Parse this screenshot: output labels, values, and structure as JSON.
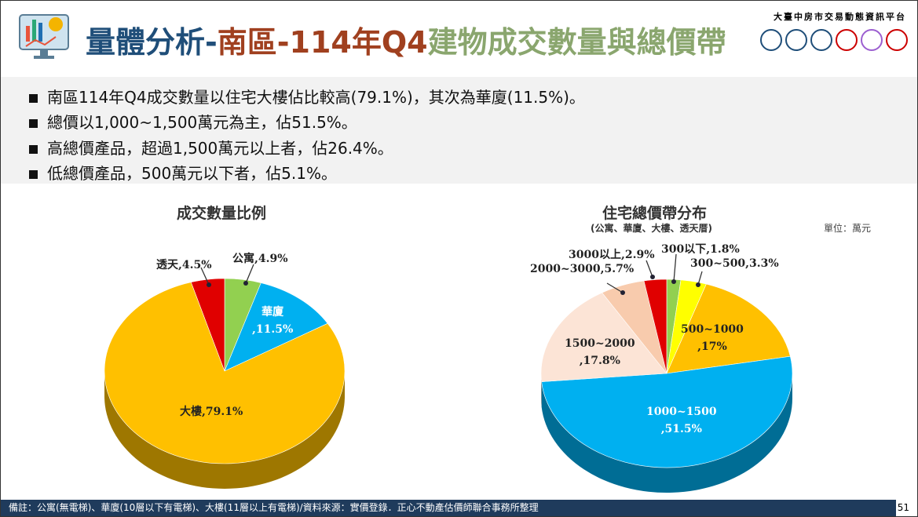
{
  "header": {
    "title_part1": "量體分析-",
    "title_part2": "南區-114年Q4",
    "title_part3": "建物成交數量與總價帶",
    "platform": "大臺中房市交易動態資訊平台",
    "logos": [
      "TRDA",
      "DIC",
      "GOV",
      "中",
      "◇",
      "CTREAA"
    ]
  },
  "bullets": [
    "南區114年Q4成交數量以住宅大樓佔比較高(79.1%)，其次為華廈(11.5%)。",
    "總價以1,000~1,500萬元為主，佔51.5%。",
    "高總價產品，超過1,500萬元以上者，佔26.4%。",
    "低總價產品，500萬元以下者，佔5.1%。"
  ],
  "chart_data": [
    {
      "type": "pie",
      "title": "成交數量比例",
      "slices": [
        {
          "label": "公寓,4.9%",
          "name": "公寓",
          "value": 4.9,
          "color": "#92d050"
        },
        {
          "label": "華廈\n,11.5%",
          "name": "華廈",
          "value": 11.5,
          "color": "#00b0f0"
        },
        {
          "label": "大樓,79.1%",
          "name": "大樓",
          "value": 79.1,
          "color": "#ffc000"
        },
        {
          "label": "透天,4.5%",
          "name": "透天",
          "value": 4.5,
          "color": "#e00000"
        }
      ]
    },
    {
      "type": "pie",
      "title": "住宅總價帶分布",
      "subtitle": "(公寓、華廈、大樓、透天厝)",
      "unit": "單位：萬元",
      "slices": [
        {
          "label": "300以下,1.8%",
          "name": "300以下",
          "value": 1.8,
          "color": "#92d050"
        },
        {
          "label": "300~500,3.3%",
          "name": "300~500",
          "value": 3.3,
          "color": "#ffff00"
        },
        {
          "label": "500~1000\n,17%",
          "name": "500~1000",
          "value": 17,
          "color": "#ffc000"
        },
        {
          "label": "1000~1500\n,51.5%",
          "name": "1000~1500",
          "value": 51.5,
          "color": "#00b0f0"
        },
        {
          "label": "1500~2000\n,17.8%",
          "name": "1500~2000",
          "value": 17.8,
          "color": "#fce4d6"
        },
        {
          "label": "2000~3000,5.7%",
          "name": "2000~3000",
          "value": 5.7,
          "color": "#f8cbad"
        },
        {
          "label": "3000以上,2.9%",
          "name": "3000以上",
          "value": 2.9,
          "color": "#e00000"
        }
      ]
    }
  ],
  "footer": {
    "note": "備註：公寓(無電梯)、華廈(10層以下有電梯)、大樓(11層以上有電梯)/資料來源：實價登錄．正心不動產估價師聯合事務所整理",
    "page": "51"
  }
}
